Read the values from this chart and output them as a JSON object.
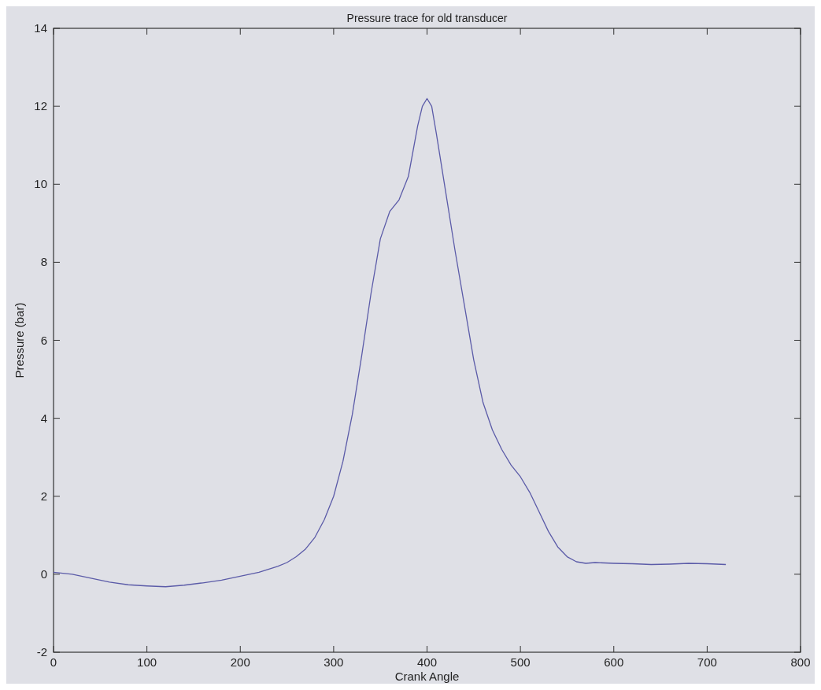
{
  "chart_data": {
    "type": "line",
    "title": "Pressure trace for old transducer",
    "xlabel": "Crank Angle",
    "ylabel": "Pressure (bar)",
    "xlim": [
      0,
      800
    ],
    "xticks": [
      0,
      100,
      200,
      300,
      400,
      500,
      600,
      700,
      800
    ],
    "ylim": [
      -2,
      14
    ],
    "yticks": [
      -2,
      0,
      2,
      4,
      6,
      8,
      10,
      12,
      14
    ],
    "grid": false,
    "series": [
      {
        "color": "#5b5ba8",
        "x": [
          0,
          20,
          40,
          60,
          80,
          100,
          120,
          140,
          160,
          180,
          200,
          220,
          240,
          250,
          260,
          270,
          280,
          290,
          300,
          310,
          320,
          330,
          340,
          350,
          360,
          370,
          380,
          390,
          395,
          400,
          405,
          410,
          420,
          430,
          440,
          450,
          460,
          470,
          480,
          490,
          500,
          510,
          520,
          530,
          540,
          550,
          560,
          570,
          580,
          600,
          620,
          640,
          660,
          680,
          700,
          720
        ],
        "values": [
          0.05,
          0.0,
          -0.1,
          -0.2,
          -0.27,
          -0.3,
          -0.32,
          -0.28,
          -0.22,
          -0.15,
          -0.05,
          0.05,
          0.2,
          0.3,
          0.45,
          0.65,
          0.95,
          1.4,
          2.0,
          2.9,
          4.1,
          5.6,
          7.2,
          8.6,
          9.3,
          9.6,
          10.2,
          11.5,
          12.0,
          12.2,
          12.0,
          11.3,
          9.8,
          8.3,
          6.9,
          5.5,
          4.4,
          3.7,
          3.2,
          2.8,
          2.5,
          2.1,
          1.6,
          1.1,
          0.7,
          0.45,
          0.32,
          0.28,
          0.3,
          0.28,
          0.27,
          0.25,
          0.26,
          0.28,
          0.27,
          0.25
        ]
      }
    ]
  }
}
